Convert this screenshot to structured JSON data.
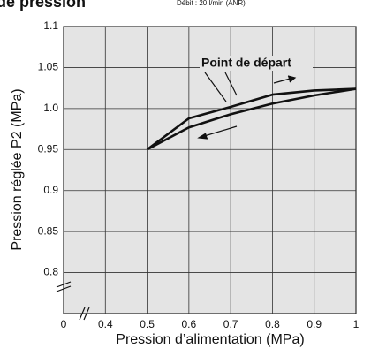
{
  "chart_data": {
    "type": "line",
    "title": "de pression",
    "subtitle": "Débit : 20 l/min (ANR)",
    "x_label": "Pression d’alimentation (MPa)",
    "y_label": "Pression réglée P2 (MPa)",
    "annotation": "Point de départ",
    "series": [
      {
        "color": "#111111",
        "x": [
          0.5,
          0.6,
          0.7,
          0.8,
          0.9,
          1
        ],
        "values": [
          0.95,
          0.988,
          1.002,
          1.017,
          1.022,
          1.024
        ]
      },
      {
        "color": "#111111",
        "x": [
          1,
          0.9,
          0.8,
          0.7,
          0.6,
          0.5
        ],
        "values": [
          1.024,
          1.016,
          1.006,
          0.993,
          0.977,
          0.95
        ]
      }
    ],
    "xlim": [
      0.3,
      1
    ],
    "xticks": [
      0,
      0.4,
      0.5,
      0.6,
      0.7,
      0.8,
      0.9,
      1
    ],
    "ylim": [
      0.75,
      1.1
    ],
    "yticks": [
      0.8,
      0.85,
      0.9,
      0.95,
      {
        "value": 1,
        "label": "1.0"
      },
      1.05,
      1.1
    ],
    "grid": true,
    "axis_break": true
  }
}
